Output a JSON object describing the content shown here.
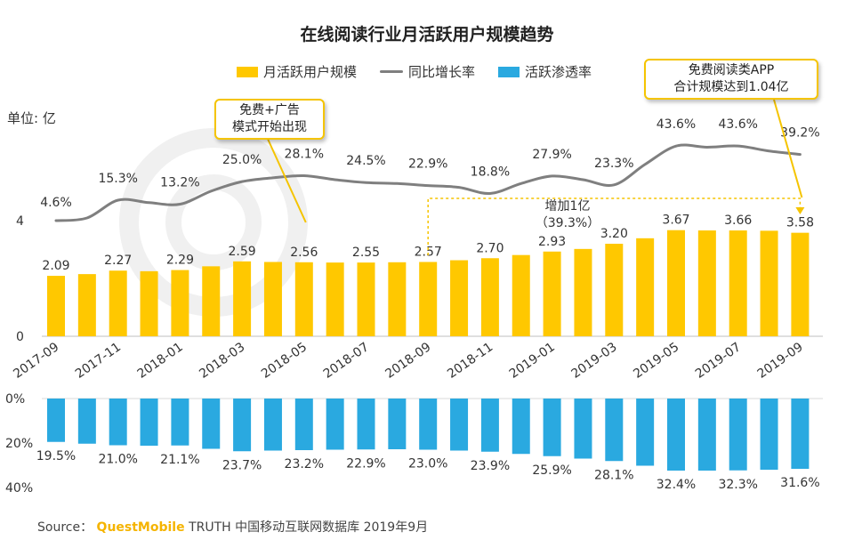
{
  "title": "在线阅读行业月活跃用户规模趋势",
  "unit": "单位: 亿",
  "legend": {
    "mau": "月活跃用户规模",
    "yoy": "同比增长率",
    "penetration": "活跃渗透率"
  },
  "callouts": {
    "free_ad_line1": "免费+广告",
    "free_ad_line2": "模式开始出现",
    "free_app_line1": "免费阅读类APP",
    "free_app_line2": "合计规模达到1.04亿",
    "increase_line1": "增加1亿",
    "increase_line2": "（39.3%）"
  },
  "source": {
    "prefix": "Source：",
    "brand": "QuestMobile",
    "suffix": " TRUTH 中国移动互联网数据库 2019年9月"
  },
  "colors": {
    "bar": "#FFC800",
    "line": "#7F7F7F",
    "penetration": "#2AA9E0",
    "callout_border": "#F5C400"
  },
  "chart_data": {
    "type": "bar",
    "categories": [
      "2017-09",
      "2017-10",
      "2017-11",
      "2017-12",
      "2018-01",
      "2018-02",
      "2018-03",
      "2018-04",
      "2018-05",
      "2018-06",
      "2018-07",
      "2018-08",
      "2018-09",
      "2018-10",
      "2018-11",
      "2018-12",
      "2019-01",
      "2019-02",
      "2019-03",
      "2019-04",
      "2019-05",
      "2019-06",
      "2019-07",
      "2019-08",
      "2019-09"
    ],
    "x_tick_labels": [
      "2017-09",
      "2017-11",
      "2018-01",
      "2018-03",
      "2018-05",
      "2018-07",
      "2018-09",
      "2018-11",
      "2019-01",
      "2019-03",
      "2019-05",
      "2019-07",
      "2019-09"
    ],
    "series": [
      {
        "name": "月活跃用户规模",
        "type": "bar",
        "values": [
          2.09,
          2.15,
          2.27,
          2.25,
          2.29,
          2.42,
          2.59,
          2.57,
          2.56,
          2.55,
          2.55,
          2.56,
          2.57,
          2.63,
          2.7,
          2.81,
          2.93,
          3.02,
          3.2,
          3.39,
          3.67,
          3.66,
          3.66,
          3.65,
          3.58
        ],
        "labels": [
          "2.09",
          "",
          "2.27",
          "",
          "2.29",
          "",
          "2.59",
          "",
          "2.56",
          "",
          "2.55",
          "",
          "2.57",
          "",
          "2.70",
          "",
          "2.93",
          "",
          "3.20",
          "",
          "3.67",
          "",
          "3.66",
          "",
          "3.58"
        ]
      },
      {
        "name": "同比增长率",
        "type": "line",
        "values": [
          4.6,
          6.0,
          15.3,
          14.0,
          13.2,
          20.0,
          25.0,
          27.0,
          28.1,
          26.0,
          24.5,
          24.0,
          22.9,
          22.0,
          18.8,
          24.0,
          27.9,
          26.0,
          23.3,
          34.0,
          43.6,
          43.0,
          43.6,
          41.0,
          39.2
        ],
        "labels": [
          "4.6%",
          "",
          "15.3%",
          "",
          "13.2%",
          "",
          "25.0%",
          "",
          "28.1%",
          "",
          "24.5%",
          "",
          "22.9%",
          "",
          "18.8%",
          "",
          "27.9%",
          "",
          "23.3%",
          "",
          "43.6%",
          "",
          "43.6%",
          "",
          "39.2%"
        ]
      },
      {
        "name": "活跃渗透率",
        "type": "bar-inverted",
        "values": [
          19.5,
          20.3,
          21.0,
          21.2,
          21.1,
          22.6,
          23.7,
          23.4,
          23.2,
          23.0,
          22.9,
          22.8,
          23.0,
          23.4,
          23.9,
          24.9,
          25.9,
          27.0,
          28.1,
          30.2,
          32.4,
          32.4,
          32.3,
          32.0,
          31.6
        ],
        "labels": [
          "19.5%",
          "",
          "21.0%",
          "",
          "21.1%",
          "",
          "23.7%",
          "",
          "23.2%",
          "",
          "22.9%",
          "",
          "23.0%",
          "",
          "23.9%",
          "",
          "25.9%",
          "",
          "28.1%",
          "",
          "32.4%",
          "",
          "32.3%",
          "",
          "31.6%"
        ]
      }
    ],
    "y_axis_bar": {
      "ylim": [
        0,
        4
      ],
      "ticks": [
        "0",
        "4"
      ]
    },
    "y_axis_penetration": {
      "ylim": [
        0,
        40
      ],
      "ticks": [
        "0%",
        "20%",
        "40%"
      ]
    },
    "xlabel": "",
    "ylabel": "单位: 亿"
  }
}
